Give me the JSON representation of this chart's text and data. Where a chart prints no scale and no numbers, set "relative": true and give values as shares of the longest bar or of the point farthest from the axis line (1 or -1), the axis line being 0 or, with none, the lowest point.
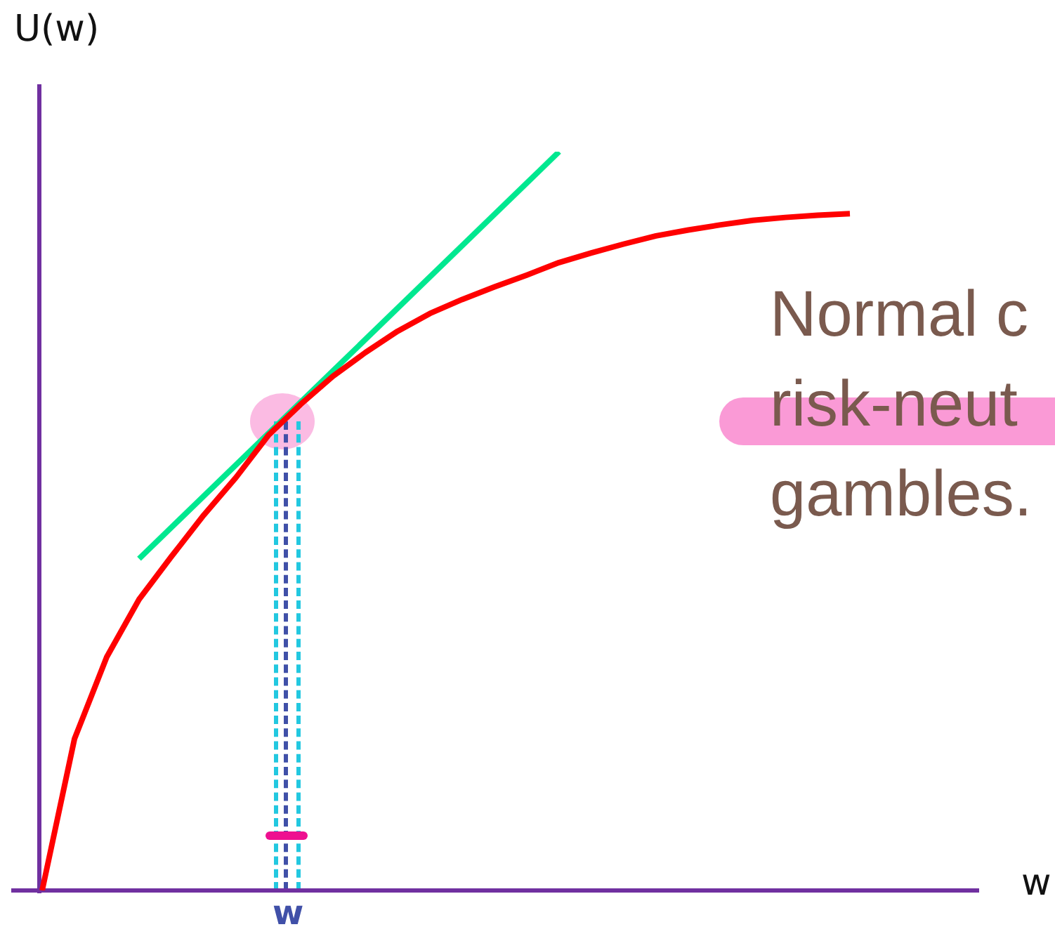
{
  "chart_data": {
    "type": "line",
    "relative": true,
    "ylabel": "U(w)",
    "xlabel": "w",
    "grid": false,
    "legend": false,
    "marker": "none",
    "categories": [
      null,
      null,
      null,
      null,
      null,
      null,
      null,
      null,
      null,
      null,
      null,
      null,
      null,
      null,
      null,
      null,
      null,
      null,
      null,
      null,
      null,
      null,
      null,
      null,
      null,
      null,
      null,
      null,
      null,
      null
    ],
    "series": [
      {
        "color": "#ff0000",
        "values": [
          0,
          0.205,
          0.316,
          0.394,
          0.452,
          0.508,
          0.559,
          0.616,
          0.658,
          0.696,
          0.728,
          0.757,
          0.781,
          0.8,
          0.817,
          0.833,
          0.85,
          0.863,
          0.875,
          0.886,
          0.894,
          0.901,
          0.907,
          0.911,
          0.914,
          0.916,
          null,
          null,
          null,
          null
        ]
      },
      {
        "color": "#00e890",
        "values": [
          null,
          null,
          null,
          0.449,
          null,
          null,
          null,
          null,
          null,
          null,
          null,
          null,
          null,
          null,
          null,
          null,
          1,
          null,
          null,
          null,
          null,
          null,
          null,
          null,
          null,
          null,
          null,
          null,
          null,
          null
        ]
      }
    ],
    "annotations": [
      "w",
      "Normal c",
      "risk-neut",
      "gambles."
    ]
  }
}
